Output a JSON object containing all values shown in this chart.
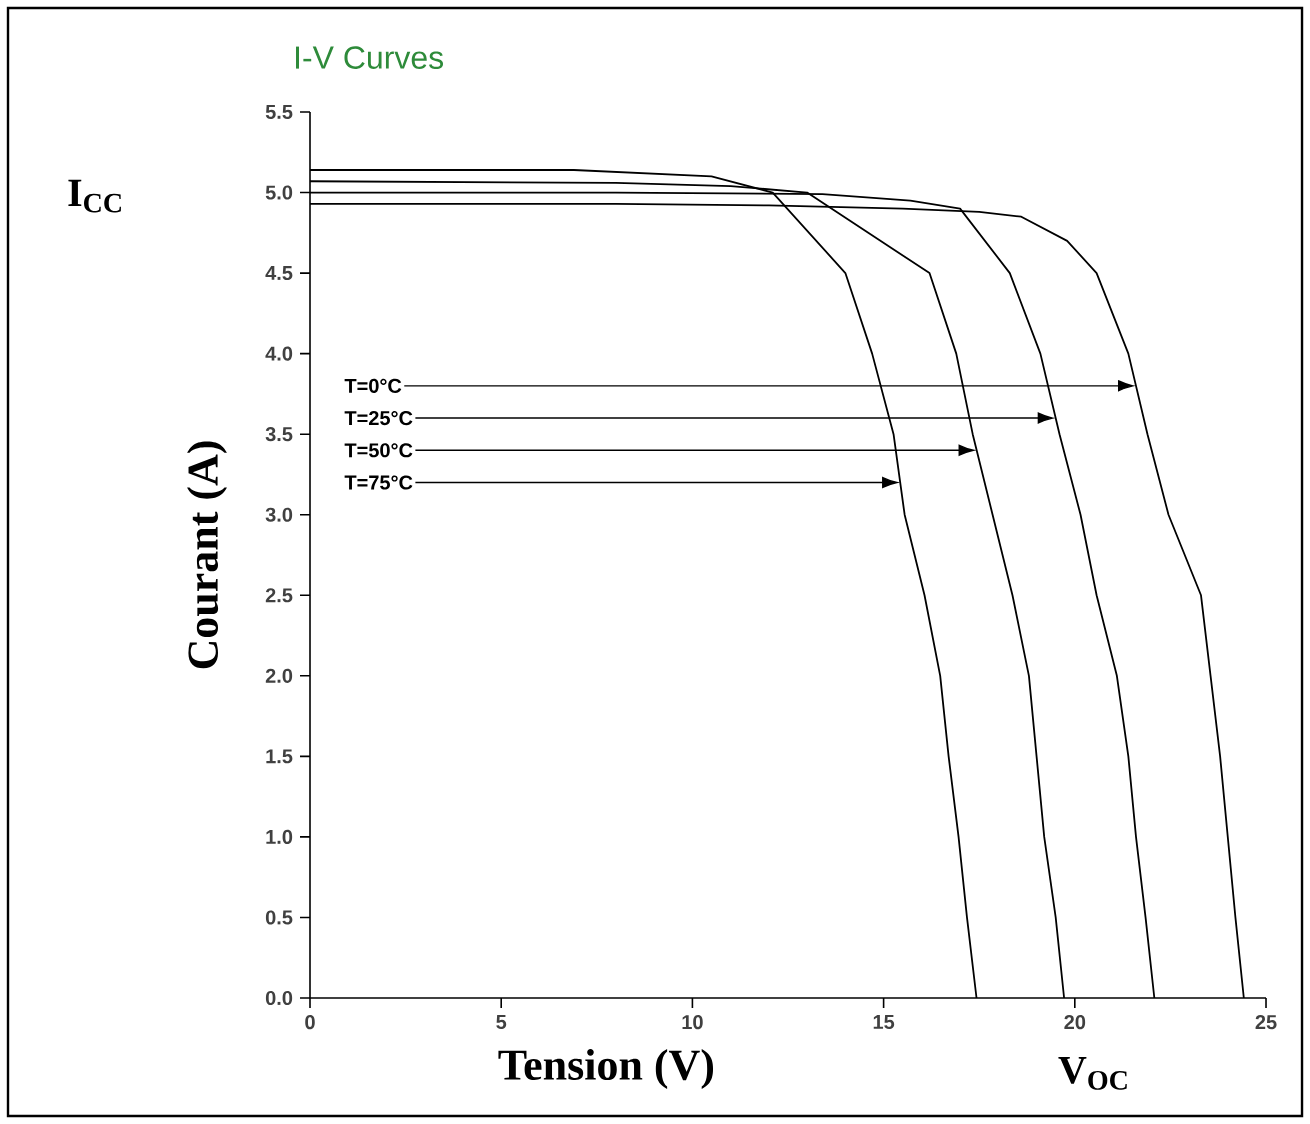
{
  "chart_data": {
    "type": "line",
    "title": "I-V Curves",
    "xlabel": "Tension (V)",
    "ylabel": "Courant (A)",
    "xlim": [
      0,
      25
    ],
    "ylim": [
      0,
      5.5
    ],
    "xticks": [
      0,
      5,
      10,
      15,
      20,
      25
    ],
    "yticks": [
      {
        "value": 0,
        "label": "0.0"
      },
      {
        "value": 0.5,
        "label": "0.5"
      },
      {
        "value": 1,
        "label": "1.0"
      },
      {
        "value": 1.5,
        "label": "1.5"
      },
      {
        "value": 2,
        "label": "2.0"
      },
      {
        "value": 2.5,
        "label": "2.5"
      },
      {
        "value": 3,
        "label": "3.0"
      },
      {
        "value": 3.5,
        "label": "3.5"
      },
      {
        "value": 4,
        "label": "4.0"
      },
      {
        "value": 4.5,
        "label": "4.5"
      },
      {
        "value": 5,
        "label": "5.0"
      },
      {
        "value": 5.5,
        "label": "5.5"
      }
    ],
    "grid": false,
    "marker": "none",
    "line_style": "solid",
    "series": [
      {
        "color": "#000000",
        "x": [
          0,
          8,
          12,
          15.5,
          17.5,
          18.6,
          19.8,
          20.57,
          21.4,
          21.9,
          22.45,
          23.3,
          23.55,
          23.8,
          24.0,
          24.2,
          24.42
        ],
        "values": [
          4.93,
          4.93,
          4.92,
          4.9,
          4.88,
          4.85,
          4.7,
          4.5,
          4.0,
          3.5,
          3.0,
          2.5,
          2.0,
          1.5,
          1.0,
          0.5,
          0
        ]
      },
      {
        "color": "#000000",
        "x": [
          0,
          8,
          13.4,
          15.7,
          17.0,
          18.3,
          19.1,
          19.6,
          20.15,
          20.57,
          21.1,
          21.4,
          21.6,
          21.85,
          22.08
        ],
        "values": [
          5.0,
          5.0,
          4.99,
          4.95,
          4.9,
          4.5,
          4.0,
          3.5,
          3.0,
          2.5,
          2.0,
          1.5,
          1.0,
          0.5,
          0
        ]
      },
      {
        "color": "#000000",
        "x": [
          0,
          8,
          11,
          13.0,
          16.2,
          16.9,
          17.33,
          17.85,
          18.37,
          18.8,
          19.0,
          19.2,
          19.5,
          19.72
        ],
        "values": [
          5.07,
          5.06,
          5.04,
          5.0,
          4.5,
          4.0,
          3.5,
          3.0,
          2.5,
          2.0,
          1.5,
          1.0,
          0.5,
          0
        ]
      },
      {
        "color": "#000000",
        "x": [
          0,
          6.9,
          10.5,
          12.1,
          14.0,
          14.7,
          15.26,
          15.55,
          16.07,
          16.48,
          16.7,
          16.96,
          17.18,
          17.43
        ],
        "values": [
          5.14,
          5.14,
          5.1,
          5.0,
          4.5,
          4.0,
          3.5,
          3.0,
          2.5,
          2.0,
          1.5,
          1.0,
          0.5,
          0
        ]
      }
    ],
    "annotations": [
      {
        "text": "T=0°C",
        "x": 21.6,
        "y": 3.8
      },
      {
        "text": "T=25°C",
        "x": 19.5,
        "y": 3.6
      },
      {
        "text": "T=50°C",
        "x": 17.43,
        "y": 3.4
      },
      {
        "text": "T=75°C",
        "x": 15.43,
        "y": 3.2
      },
      "I$_{CC}$",
      "V$_{OC}$"
    ]
  }
}
